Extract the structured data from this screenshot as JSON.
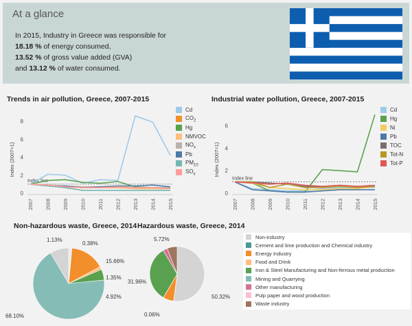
{
  "header": {
    "title": "At a glance",
    "line1": "In 2015, Industry in Greece was responsible for",
    "line2_value": "18.18 %",
    "line2_text": " of energy consumed,",
    "line3_value": "13.52 %",
    "line3_text": " of gross value added (GVA)",
    "line4_prefix": "and ",
    "line4_value": "13.12 %",
    "line4_text": " of water consumed."
  },
  "colors": {
    "header_bg": "#c9d6d6",
    "flag_blue": "#0d5eaf",
    "flag_white": "#ffffff"
  },
  "chart_data": [
    {
      "type": "line",
      "title": "Trends in air pollution, Greece, 2007-2015",
      "ylabel": "Index (2007=1)",
      "ylim": [
        0,
        9
      ],
      "yticks": [
        0,
        2,
        4,
        6,
        8
      ],
      "x": [
        "2007",
        "2008",
        "2009",
        "2010",
        "2011",
        "2012",
        "2013",
        "2014",
        "2015"
      ],
      "index_line_label": "Index line",
      "series": [
        {
          "name": "Cd",
          "color": "#9ecae9",
          "values": [
            1,
            2.1,
            2,
            1.1,
            1.5,
            1.4,
            8.6,
            7.9,
            4.2
          ]
        },
        {
          "name": "CO",
          "sub": "2",
          "color": "#f28e2b",
          "values": [
            1,
            0.9,
            0.7,
            0.6,
            0.6,
            0.6,
            0.5,
            0.5,
            0.5
          ]
        },
        {
          "name": "Hg",
          "color": "#59a14f",
          "values": [
            1,
            1.4,
            1.5,
            1.2,
            1.1,
            1.3,
            0.7,
            0.6,
            0.6
          ]
        },
        {
          "name": "NMVOC",
          "color": "#ffbe7d",
          "values": [
            1,
            0.8,
            0.7,
            0.6,
            0.6,
            0.6,
            0.5,
            0.5,
            0.5
          ]
        },
        {
          "name": "NO",
          "sub": "x",
          "color": "#bab0ac",
          "values": [
            1,
            0.9,
            0.8,
            0.7,
            0.7,
            0.7,
            0.6,
            0.6,
            0.6
          ]
        },
        {
          "name": "Pb",
          "color": "#4e79a7",
          "values": [
            1,
            0.8,
            0.8,
            0.6,
            0.7,
            0.8,
            0.8,
            0.9,
            0.7
          ]
        },
        {
          "name": "PM",
          "sub": "10",
          "color": "#76b7b2",
          "values": [
            1,
            0.8,
            0.6,
            0.3,
            0.3,
            0.3,
            0.3,
            0.3,
            0.3
          ]
        },
        {
          "name": "SO",
          "sub": "x",
          "color": "#ff9d9a",
          "values": [
            1,
            0.9,
            0.7,
            0.6,
            0.6,
            0.7,
            0.6,
            0.6,
            0.5
          ]
        }
      ]
    },
    {
      "type": "line",
      "title": "Industrial water pollution, Greece, 2007-2015",
      "ylabel": "Index (2007=1)",
      "ylim": [
        0,
        7.2
      ],
      "yticks": [
        0,
        2,
        4,
        6
      ],
      "x": [
        "2007",
        "2008",
        "2009",
        "2010",
        "2011",
        "2012",
        "2013",
        "2014",
        "2015"
      ],
      "index_line_label": "Index line",
      "series": [
        {
          "name": "Cd",
          "color": "#9ecae9",
          "values": [
            1,
            0.4,
            0.3,
            0.2,
            0.2,
            0.4,
            0.5,
            0.5,
            0.5
          ]
        },
        {
          "name": "Hg",
          "color": "#59a14f",
          "values": [
            1,
            0.9,
            0.2,
            0.1,
            0.1,
            2.1,
            2.0,
            1.9,
            7.0
          ]
        },
        {
          "name": "Ni",
          "color": "#f1ce63",
          "values": [
            1,
            0.9,
            0.5,
            0.4,
            0.3,
            0.3,
            0.4,
            0.4,
            0.6
          ]
        },
        {
          "name": "Pb",
          "color": "#4e79a7",
          "values": [
            1,
            0.3,
            0.2,
            0.1,
            0.1,
            0.2,
            0.3,
            0.3,
            0.3
          ]
        },
        {
          "name": "TOC",
          "color": "#79706e",
          "values": [
            1,
            1.0,
            0.9,
            0.8,
            0.6,
            0.6,
            0.7,
            0.6,
            0.6
          ]
        },
        {
          "name": "Tot-N",
          "color": "#b6992d",
          "values": [
            1,
            1.0,
            0.5,
            0.8,
            0.5,
            0.5,
            0.6,
            0.5,
            0.6
          ]
        },
        {
          "name": "Tot-P",
          "color": "#e15759",
          "values": [
            1,
            0.9,
            0.8,
            0.9,
            0.7,
            0.6,
            0.7,
            0.6,
            0.7
          ]
        }
      ]
    },
    {
      "type": "pie",
      "title": "Non-hazardous waste, Greece, 2014",
      "slices": [
        {
          "label": "1.13%",
          "value": 1.13,
          "color": "#e8e8e8"
        },
        {
          "label": "0.38%",
          "value": 0.38,
          "color": "#d0d0d0"
        },
        {
          "label": "15.66%",
          "value": 15.66,
          "color": "#f28e2b"
        },
        {
          "label": "1.35%",
          "value": 1.35,
          "color": "#ffbe7d"
        },
        {
          "label": "4.92%",
          "value": 4.92,
          "color": "#59a14f"
        },
        {
          "label": "68.10%",
          "value": 68.1,
          "color": "#86bcb6"
        },
        {
          "label": "",
          "value": 8.46,
          "color": "#d4d4d4"
        }
      ]
    },
    {
      "type": "pie",
      "title": "Hazardous waste, Greece, 2014",
      "slices": [
        {
          "label": "50.32%",
          "value": 50.32,
          "color": "#d4d4d4"
        },
        {
          "label": "",
          "value": 6.0,
          "color": "#f28e2b"
        },
        {
          "label": "0.06%",
          "value": 0.06,
          "color": "#ffbe7d"
        },
        {
          "label": "31.96%",
          "value": 31.96,
          "color": "#59a14f"
        },
        {
          "label": "",
          "value": 2.5,
          "color": "#d37295"
        },
        {
          "label": "5.72%",
          "value": 5.72,
          "color": "#9d7660"
        }
      ]
    }
  ],
  "pie_legend": [
    {
      "label": "Non-industry",
      "color": "#d4d4d4"
    },
    {
      "label": "Cement and lime production and Chemical industry",
      "color": "#499894"
    },
    {
      "label": "Energy Industry",
      "color": "#f28e2b"
    },
    {
      "label": "Food and Drink",
      "color": "#ffbe7d"
    },
    {
      "label": "Iron & Steel Manufacturing and Non-ferrous metal production",
      "color": "#59a14f"
    },
    {
      "label": "Mining and Quarrying",
      "color": "#86bcb6"
    },
    {
      "label": "Other manufacturing",
      "color": "#d37295"
    },
    {
      "label": "Pulp paper and wood production",
      "color": "#fabfd2"
    },
    {
      "label": "Waste industry",
      "color": "#9d7660"
    }
  ]
}
